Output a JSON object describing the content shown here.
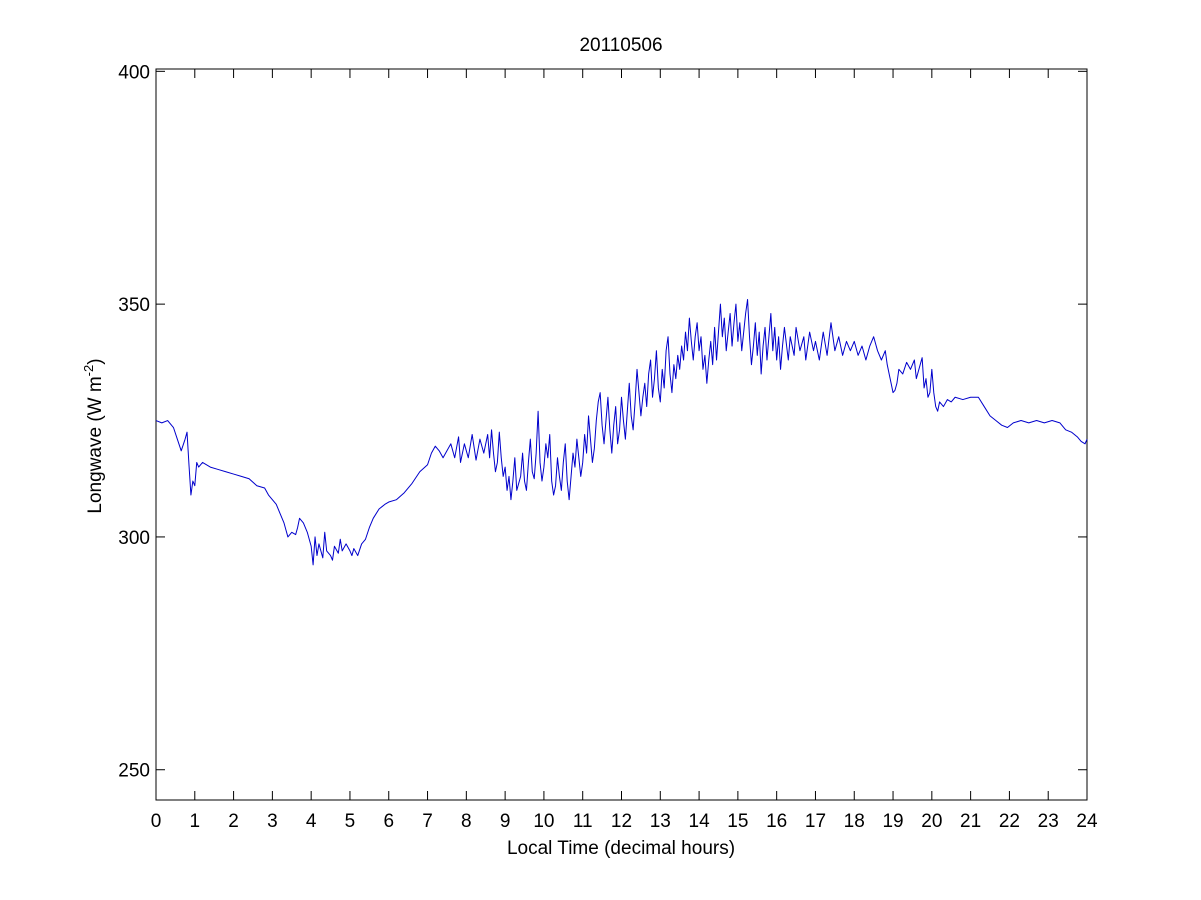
{
  "figure": {
    "background": "#ffffff"
  },
  "chart_data": {
    "type": "line",
    "title": "20110506",
    "xlabel": "Local Time (decimal hours)",
    "ylabel": {
      "main": "Longwave (W m",
      "sup": "-2",
      "tail": ")"
    },
    "xlim": [
      0,
      24
    ],
    "ylim": [
      243.5,
      400.5
    ],
    "xticks": [
      0,
      1,
      2,
      3,
      4,
      5,
      6,
      7,
      8,
      9,
      10,
      11,
      12,
      13,
      14,
      15,
      16,
      17,
      18,
      19,
      20,
      21,
      22,
      23,
      24
    ],
    "yticks": [
      250,
      300,
      350,
      400
    ],
    "grid": false,
    "box": true,
    "line_color": "#0000cc",
    "series": [
      {
        "points": [
          [
            0.0,
            325.0
          ],
          [
            0.15,
            324.5
          ],
          [
            0.3,
            325.0
          ],
          [
            0.45,
            323.5
          ],
          [
            0.55,
            321.0
          ],
          [
            0.65,
            318.5
          ],
          [
            0.75,
            321.0
          ],
          [
            0.8,
            322.5
          ],
          [
            0.85,
            315.5
          ],
          [
            0.9,
            309.0
          ],
          [
            0.95,
            312.0
          ],
          [
            1.0,
            311.0
          ],
          [
            1.05,
            316.0
          ],
          [
            1.1,
            315.0
          ],
          [
            1.2,
            316.0
          ],
          [
            1.4,
            315.0
          ],
          [
            1.6,
            314.5
          ],
          [
            1.8,
            314.0
          ],
          [
            2.0,
            313.5
          ],
          [
            2.2,
            313.0
          ],
          [
            2.4,
            312.5
          ],
          [
            2.6,
            311.0
          ],
          [
            2.8,
            310.5
          ],
          [
            2.9,
            309.0
          ],
          [
            3.0,
            308.0
          ],
          [
            3.1,
            307.0
          ],
          [
            3.2,
            305.0
          ],
          [
            3.3,
            303.0
          ],
          [
            3.35,
            301.5
          ],
          [
            3.4,
            300.0
          ],
          [
            3.5,
            301.0
          ],
          [
            3.6,
            300.5
          ],
          [
            3.65,
            302.0
          ],
          [
            3.7,
            304.0
          ],
          [
            3.8,
            303.0
          ],
          [
            3.9,
            301.0
          ],
          [
            3.95,
            299.5
          ],
          [
            4.0,
            298.0
          ],
          [
            4.05,
            294.0
          ],
          [
            4.1,
            300.0
          ],
          [
            4.15,
            296.0
          ],
          [
            4.2,
            298.5
          ],
          [
            4.3,
            295.5
          ],
          [
            4.35,
            301.0
          ],
          [
            4.4,
            297.0
          ],
          [
            4.5,
            296.0
          ],
          [
            4.55,
            295.0
          ],
          [
            4.6,
            298.0
          ],
          [
            4.7,
            296.5
          ],
          [
            4.75,
            299.5
          ],
          [
            4.8,
            297.0
          ],
          [
            4.9,
            298.5
          ],
          [
            5.0,
            297.0
          ],
          [
            5.05,
            296.0
          ],
          [
            5.1,
            297.5
          ],
          [
            5.2,
            296.0
          ],
          [
            5.3,
            298.5
          ],
          [
            5.4,
            299.5
          ],
          [
            5.5,
            302.0
          ],
          [
            5.6,
            304.0
          ],
          [
            5.75,
            306.0
          ],
          [
            5.9,
            307.0
          ],
          [
            6.0,
            307.5
          ],
          [
            6.2,
            308.0
          ],
          [
            6.4,
            309.5
          ],
          [
            6.6,
            311.5
          ],
          [
            6.8,
            314.0
          ],
          [
            7.0,
            315.5
          ],
          [
            7.1,
            318.0
          ],
          [
            7.2,
            319.5
          ],
          [
            7.3,
            318.5
          ],
          [
            7.4,
            317.0
          ],
          [
            7.5,
            318.5
          ],
          [
            7.6,
            320.0
          ],
          [
            7.7,
            317.0
          ],
          [
            7.8,
            321.5
          ],
          [
            7.85,
            316.0
          ],
          [
            7.95,
            320.0
          ],
          [
            8.05,
            317.0
          ],
          [
            8.15,
            322.0
          ],
          [
            8.25,
            316.5
          ],
          [
            8.35,
            321.0
          ],
          [
            8.45,
            318.0
          ],
          [
            8.55,
            322.0
          ],
          [
            8.6,
            317.0
          ],
          [
            8.65,
            323.0
          ],
          [
            8.7,
            318.0
          ],
          [
            8.75,
            314.0
          ],
          [
            8.8,
            316.0
          ],
          [
            8.85,
            322.5
          ],
          [
            8.9,
            317.0
          ],
          [
            8.95,
            313.0
          ],
          [
            9.0,
            315.0
          ],
          [
            9.05,
            310.0
          ],
          [
            9.1,
            313.0
          ],
          [
            9.15,
            308.0
          ],
          [
            9.2,
            312.0
          ],
          [
            9.25,
            317.0
          ],
          [
            9.3,
            310.0
          ],
          [
            9.4,
            313.0
          ],
          [
            9.45,
            318.0
          ],
          [
            9.5,
            312.0
          ],
          [
            9.55,
            310.0
          ],
          [
            9.6,
            316.0
          ],
          [
            9.65,
            321.0
          ],
          [
            9.7,
            314.0
          ],
          [
            9.75,
            312.5
          ],
          [
            9.8,
            318.0
          ],
          [
            9.85,
            327.0
          ],
          [
            9.9,
            316.0
          ],
          [
            9.95,
            312.0
          ],
          [
            10.0,
            315.0
          ],
          [
            10.05,
            320.0
          ],
          [
            10.1,
            317.0
          ],
          [
            10.15,
            322.0
          ],
          [
            10.2,
            312.0
          ],
          [
            10.25,
            309.0
          ],
          [
            10.3,
            311.0
          ],
          [
            10.35,
            317.0
          ],
          [
            10.4,
            313.0
          ],
          [
            10.45,
            310.0
          ],
          [
            10.5,
            316.0
          ],
          [
            10.55,
            320.0
          ],
          [
            10.6,
            312.0
          ],
          [
            10.65,
            308.0
          ],
          [
            10.7,
            313.0
          ],
          [
            10.75,
            318.0
          ],
          [
            10.8,
            315.0
          ],
          [
            10.85,
            321.0
          ],
          [
            10.9,
            317.0
          ],
          [
            10.95,
            313.0
          ],
          [
            11.0,
            316.0
          ],
          [
            11.05,
            322.0
          ],
          [
            11.1,
            318.0
          ],
          [
            11.15,
            326.0
          ],
          [
            11.2,
            321.0
          ],
          [
            11.25,
            316.0
          ],
          [
            11.3,
            319.0
          ],
          [
            11.35,
            325.0
          ],
          [
            11.4,
            329.0
          ],
          [
            11.45,
            331.0
          ],
          [
            11.5,
            324.0
          ],
          [
            11.55,
            320.0
          ],
          [
            11.6,
            325.0
          ],
          [
            11.65,
            330.0
          ],
          [
            11.7,
            323.0
          ],
          [
            11.75,
            318.0
          ],
          [
            11.8,
            324.0
          ],
          [
            11.85,
            328.0
          ],
          [
            11.9,
            320.0
          ],
          [
            11.95,
            323.0
          ],
          [
            12.0,
            330.0
          ],
          [
            12.05,
            325.0
          ],
          [
            12.1,
            321.0
          ],
          [
            12.15,
            327.0
          ],
          [
            12.2,
            333.0
          ],
          [
            12.25,
            326.0
          ],
          [
            12.3,
            323.0
          ],
          [
            12.35,
            329.0
          ],
          [
            12.4,
            336.0
          ],
          [
            12.45,
            331.0
          ],
          [
            12.5,
            326.0
          ],
          [
            12.55,
            330.0
          ],
          [
            12.6,
            333.0
          ],
          [
            12.65,
            328.0
          ],
          [
            12.7,
            335.0
          ],
          [
            12.75,
            338.0
          ],
          [
            12.8,
            330.0
          ],
          [
            12.85,
            334.0
          ],
          [
            12.9,
            340.0
          ],
          [
            12.95,
            332.0
          ],
          [
            13.0,
            329.0
          ],
          [
            13.05,
            336.0
          ],
          [
            13.1,
            332.0
          ],
          [
            13.15,
            340.0
          ],
          [
            13.2,
            343.0
          ],
          [
            13.25,
            335.0
          ],
          [
            13.3,
            331.0
          ],
          [
            13.35,
            337.0
          ],
          [
            13.4,
            334.0
          ],
          [
            13.45,
            339.0
          ],
          [
            13.5,
            336.0
          ],
          [
            13.55,
            341.0
          ],
          [
            13.6,
            338.0
          ],
          [
            13.65,
            344.0
          ],
          [
            13.7,
            340.0
          ],
          [
            13.75,
            347.0
          ],
          [
            13.8,
            342.0
          ],
          [
            13.85,
            338.0
          ],
          [
            13.9,
            343.0
          ],
          [
            13.95,
            346.0
          ],
          [
            14.0,
            340.0
          ],
          [
            14.05,
            343.0
          ],
          [
            14.1,
            336.0
          ],
          [
            14.15,
            339.0
          ],
          [
            14.2,
            333.0
          ],
          [
            14.25,
            338.0
          ],
          [
            14.3,
            342.0
          ],
          [
            14.35,
            337.0
          ],
          [
            14.4,
            345.0
          ],
          [
            14.45,
            338.0
          ],
          [
            14.5,
            344.0
          ],
          [
            14.55,
            350.0
          ],
          [
            14.6,
            343.0
          ],
          [
            14.65,
            347.0
          ],
          [
            14.7,
            340.0
          ],
          [
            14.75,
            344.0
          ],
          [
            14.8,
            348.0
          ],
          [
            14.85,
            341.0
          ],
          [
            14.9,
            346.0
          ],
          [
            14.95,
            350.0
          ],
          [
            15.0,
            342.0
          ],
          [
            15.05,
            346.0
          ],
          [
            15.1,
            340.0
          ],
          [
            15.15,
            344.0
          ],
          [
            15.2,
            348.0
          ],
          [
            15.25,
            351.0
          ],
          [
            15.3,
            343.0
          ],
          [
            15.35,
            337.0
          ],
          [
            15.4,
            341.0
          ],
          [
            15.45,
            346.0
          ],
          [
            15.5,
            339.0
          ],
          [
            15.55,
            344.0
          ],
          [
            15.6,
            335.0
          ],
          [
            15.65,
            341.0
          ],
          [
            15.7,
            345.0
          ],
          [
            15.75,
            338.0
          ],
          [
            15.8,
            343.0
          ],
          [
            15.85,
            348.0
          ],
          [
            15.9,
            340.0
          ],
          [
            15.95,
            345.0
          ],
          [
            16.0,
            338.0
          ],
          [
            16.05,
            343.0
          ],
          [
            16.1,
            336.0
          ],
          [
            16.15,
            341.0
          ],
          [
            16.2,
            345.0
          ],
          [
            16.3,
            338.0
          ],
          [
            16.35,
            343.0
          ],
          [
            16.45,
            339.0
          ],
          [
            16.5,
            345.0
          ],
          [
            16.6,
            340.0
          ],
          [
            16.7,
            343.0
          ],
          [
            16.75,
            338.0
          ],
          [
            16.85,
            344.0
          ],
          [
            16.95,
            340.0
          ],
          [
            17.0,
            342.0
          ],
          [
            17.1,
            338.0
          ],
          [
            17.2,
            344.0
          ],
          [
            17.3,
            339.0
          ],
          [
            17.4,
            346.0
          ],
          [
            17.5,
            340.0
          ],
          [
            17.6,
            343.0
          ],
          [
            17.7,
            339.0
          ],
          [
            17.8,
            342.0
          ],
          [
            17.9,
            340.0
          ],
          [
            18.0,
            342.0
          ],
          [
            18.1,
            339.0
          ],
          [
            18.2,
            341.0
          ],
          [
            18.3,
            338.0
          ],
          [
            18.4,
            341.0
          ],
          [
            18.5,
            343.0
          ],
          [
            18.6,
            340.0
          ],
          [
            18.7,
            338.0
          ],
          [
            18.8,
            340.0
          ],
          [
            18.85,
            337.0
          ],
          [
            18.9,
            335.0
          ],
          [
            18.95,
            333.0
          ],
          [
            19.0,
            331.0
          ],
          [
            19.05,
            331.5
          ],
          [
            19.1,
            333.0
          ],
          [
            19.15,
            336.0
          ],
          [
            19.25,
            335.0
          ],
          [
            19.35,
            337.5
          ],
          [
            19.45,
            336.0
          ],
          [
            19.55,
            338.0
          ],
          [
            19.6,
            334.0
          ],
          [
            19.7,
            337.0
          ],
          [
            19.75,
            338.5
          ],
          [
            19.8,
            332.0
          ],
          [
            19.85,
            334.0
          ],
          [
            19.9,
            330.0
          ],
          [
            19.95,
            331.0
          ],
          [
            20.0,
            336.0
          ],
          [
            20.05,
            331.0
          ],
          [
            20.1,
            328.0
          ],
          [
            20.15,
            327.0
          ],
          [
            20.2,
            329.0
          ],
          [
            20.3,
            328.0
          ],
          [
            20.4,
            329.5
          ],
          [
            20.5,
            329.0
          ],
          [
            20.6,
            330.0
          ],
          [
            20.8,
            329.5
          ],
          [
            21.0,
            330.0
          ],
          [
            21.2,
            330.0
          ],
          [
            21.35,
            328.0
          ],
          [
            21.5,
            326.0
          ],
          [
            21.65,
            325.0
          ],
          [
            21.8,
            324.0
          ],
          [
            21.95,
            323.5
          ],
          [
            22.1,
            324.5
          ],
          [
            22.3,
            325.0
          ],
          [
            22.5,
            324.5
          ],
          [
            22.7,
            325.0
          ],
          [
            22.9,
            324.5
          ],
          [
            23.1,
            325.0
          ],
          [
            23.3,
            324.5
          ],
          [
            23.45,
            323.0
          ],
          [
            23.6,
            322.5
          ],
          [
            23.75,
            321.5
          ],
          [
            23.85,
            320.5
          ],
          [
            23.95,
            320.0
          ],
          [
            24.0,
            321.0
          ]
        ]
      }
    ]
  }
}
